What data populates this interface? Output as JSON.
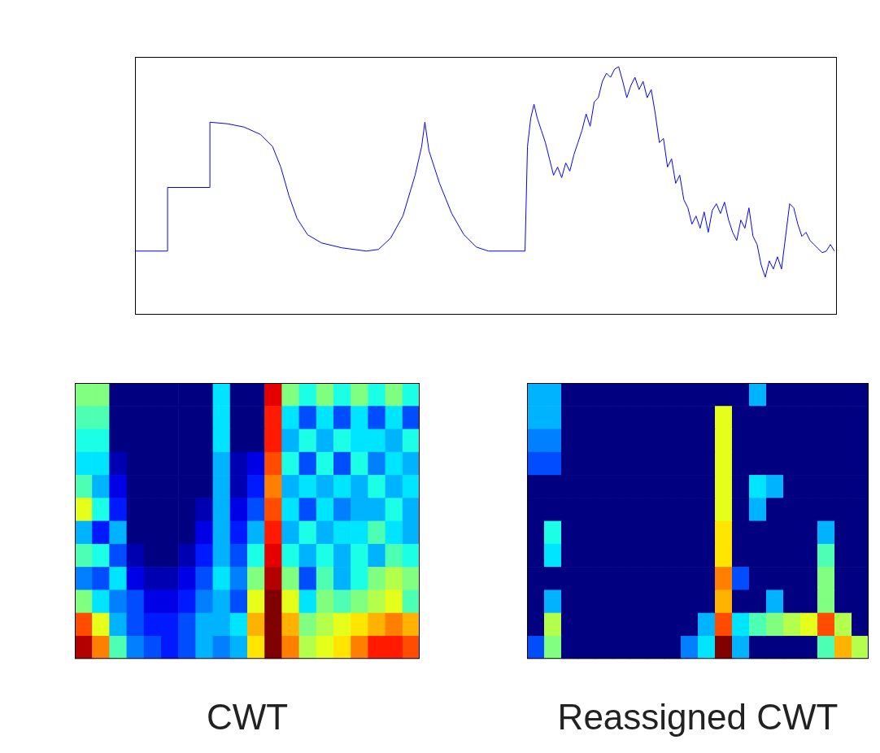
{
  "chart_data": [
    {
      "type": "line",
      "color": "#0000ff",
      "grid": false,
      "tick_labels": false,
      "xlim": [
        0,
        862
      ],
      "ylim": [
        0,
        316
      ],
      "x": [
        0,
        40,
        40,
        92,
        92,
        114,
        134,
        154,
        169,
        179,
        189,
        199,
        212,
        229,
        254,
        284,
        299,
        314,
        329,
        344,
        352,
        356,
        361,
        374,
        389,
        404,
        419,
        434,
        479,
        482,
        486,
        490,
        494,
        499,
        504,
        509,
        514,
        519,
        524,
        529,
        534,
        539,
        544,
        549,
        554,
        559,
        564,
        569,
        574,
        579,
        584,
        589,
        594,
        599,
        604,
        609,
        614,
        619,
        624,
        629,
        634,
        639,
        644,
        649,
        654,
        659,
        664,
        669,
        674,
        679,
        684,
        689,
        694,
        699,
        704,
        709,
        714,
        719,
        724,
        729,
        734,
        739,
        744,
        749,
        754,
        759,
        764,
        769,
        774,
        779,
        784,
        789,
        794,
        799,
        804,
        809,
        814,
        819,
        824,
        829,
        834,
        839,
        844,
        849,
        854,
        859
      ],
      "values": [
        78,
        78,
        156,
        156,
        236,
        234,
        230,
        221,
        206,
        181,
        146,
        118,
        98,
        88,
        82,
        78,
        80,
        94,
        121,
        171,
        206,
        236,
        201,
        161,
        124,
        98,
        83,
        78,
        78,
        206,
        241,
        258,
        241,
        226,
        211,
        191,
        171,
        181,
        168,
        186,
        176,
        196,
        211,
        226,
        246,
        231,
        261,
        266,
        286,
        296,
        291,
        301,
        304,
        286,
        266,
        281,
        291,
        276,
        286,
        266,
        276,
        246,
        211,
        216,
        181,
        191,
        161,
        171,
        141,
        131,
        111,
        121,
        106,
        126,
        101,
        128,
        136,
        124,
        138,
        116,
        101,
        91,
        116,
        106,
        131,
        96,
        86,
        61,
        46,
        66,
        56,
        71,
        56,
        96,
        136,
        131,
        111,
        96,
        101,
        91,
        86,
        81,
        76,
        78,
        86,
        78
      ]
    },
    {
      "type": "heatmap",
      "title": "CWT",
      "tick_labels": false,
      "cells": [
        [
          0.5,
          0.5,
          0,
          0,
          0,
          0,
          0,
          0,
          0.35,
          0,
          0,
          0.9,
          0.5,
          0.4,
          0.5,
          0.4,
          0.5,
          0.4,
          0.5,
          0.4
        ],
        [
          0.45,
          0.45,
          0,
          0,
          0,
          0,
          0,
          0,
          0.35,
          0,
          0,
          0.85,
          0.35,
          0.2,
          0.35,
          0.2,
          0.35,
          0.2,
          0.35,
          0.2
        ],
        [
          0.4,
          0.4,
          0,
          0,
          0,
          0,
          0,
          0,
          0.35,
          0,
          0,
          0.85,
          0.3,
          0.4,
          0.3,
          0.4,
          0.35,
          0.35,
          0.3,
          0.4
        ],
        [
          0.35,
          0.35,
          0.05,
          0,
          0,
          0,
          0,
          0,
          0.3,
          0.05,
          0.1,
          0.8,
          0.4,
          0.2,
          0.4,
          0.2,
          0.4,
          0.25,
          0.35,
          0.3
        ],
        [
          0.45,
          0.3,
          0.1,
          0,
          0,
          0,
          0,
          0,
          0.3,
          0.05,
          0.15,
          0.75,
          0.3,
          0.35,
          0.3,
          0.35,
          0.3,
          0.4,
          0.3,
          0.35
        ],
        [
          0.6,
          0.4,
          0.15,
          0,
          0,
          0,
          0,
          0.05,
          0.3,
          0.1,
          0.2,
          0.8,
          0.35,
          0.2,
          0.35,
          0.25,
          0.3,
          0.3,
          0.4,
          0.3
        ],
        [
          0.3,
          0.15,
          0.3,
          0,
          0,
          0,
          0,
          0.1,
          0.3,
          0.15,
          0.3,
          0.85,
          0.3,
          0.4,
          0.3,
          0.35,
          0.35,
          0.45,
          0.35,
          0.3
        ],
        [
          0.45,
          0.4,
          0.2,
          0.05,
          0,
          0,
          0.05,
          0.15,
          0.3,
          0.2,
          0.4,
          0.9,
          0.4,
          0.3,
          0.4,
          0.3,
          0.4,
          0.3,
          0.45,
          0.4
        ],
        [
          0.25,
          0.2,
          0.35,
          0.1,
          0.05,
          0.05,
          0.1,
          0.2,
          0.35,
          0.25,
          0.5,
          0.95,
          0.5,
          0.2,
          0.45,
          0.3,
          0.4,
          0.5,
          0.55,
          0.5
        ],
        [
          0.5,
          0.35,
          0.25,
          0.2,
          0.1,
          0.1,
          0.15,
          0.25,
          0.3,
          0.2,
          0.6,
          1.0,
          0.6,
          0.35,
          0.5,
          0.45,
          0.5,
          0.55,
          0.6,
          0.45
        ],
        [
          0.8,
          0.6,
          0.3,
          0.2,
          0.15,
          0.15,
          0.2,
          0.3,
          0.3,
          0.35,
          0.7,
          1.0,
          0.7,
          0.5,
          0.55,
          0.6,
          0.65,
          0.7,
          0.75,
          0.7
        ],
        [
          0.95,
          0.75,
          0.45,
          0.25,
          0.2,
          0.15,
          0.2,
          0.3,
          0.25,
          0.3,
          0.65,
          1.0,
          0.75,
          0.55,
          0.6,
          0.65,
          0.75,
          0.85,
          0.85,
          0.8
        ]
      ]
    },
    {
      "type": "heatmap",
      "title": "Reassigned CWT",
      "tick_labels": false,
      "cells": [
        [
          0.3,
          0.3,
          0,
          0,
          0,
          0,
          0,
          0,
          0,
          0,
          0,
          0,
          0,
          0.3,
          0,
          0,
          0,
          0,
          0,
          0
        ],
        [
          0.3,
          0.3,
          0,
          0,
          0,
          0,
          0,
          0,
          0,
          0,
          0,
          0.6,
          0,
          0,
          0,
          0,
          0,
          0,
          0,
          0
        ],
        [
          0.25,
          0.25,
          0,
          0,
          0,
          0,
          0,
          0,
          0,
          0,
          0,
          0.6,
          0,
          0,
          0,
          0,
          0,
          0,
          0,
          0
        ],
        [
          0.2,
          0.2,
          0,
          0,
          0,
          0,
          0,
          0,
          0,
          0,
          0,
          0.6,
          0,
          0,
          0,
          0,
          0,
          0,
          0,
          0
        ],
        [
          0,
          0,
          0,
          0,
          0,
          0,
          0,
          0,
          0,
          0,
          0,
          0.6,
          0,
          0.35,
          0.3,
          0,
          0,
          0,
          0,
          0
        ],
        [
          0,
          0,
          0,
          0,
          0,
          0,
          0,
          0,
          0,
          0,
          0,
          0.6,
          0,
          0.3,
          0,
          0,
          0,
          0,
          0,
          0
        ],
        [
          0,
          0.4,
          0,
          0,
          0,
          0,
          0,
          0,
          0,
          0,
          0,
          0.65,
          0,
          0,
          0,
          0,
          0,
          0.3,
          0,
          0
        ],
        [
          0,
          0.35,
          0,
          0,
          0,
          0,
          0,
          0,
          0,
          0,
          0,
          0.65,
          0,
          0,
          0,
          0,
          0,
          0.45,
          0,
          0
        ],
        [
          0,
          0,
          0,
          0,
          0,
          0,
          0,
          0,
          0,
          0,
          0,
          0.75,
          0.2,
          0,
          0,
          0,
          0,
          0.5,
          0,
          0
        ],
        [
          0,
          0.3,
          0,
          0,
          0,
          0,
          0,
          0,
          0,
          0,
          0,
          0.7,
          0,
          0,
          0.3,
          0,
          0,
          0.5,
          0,
          0
        ],
        [
          0,
          0.55,
          0,
          0,
          0,
          0,
          0,
          0,
          0,
          0,
          0.3,
          0.8,
          0.35,
          0.45,
          0.5,
          0.55,
          0.6,
          0.8,
          0.55,
          0
        ],
        [
          0.2,
          0.5,
          0,
          0,
          0,
          0,
          0,
          0,
          0,
          0.25,
          0.35,
          1.0,
          0.3,
          0,
          0,
          0,
          0,
          0.45,
          0.7,
          0.55
        ]
      ]
    }
  ]
}
